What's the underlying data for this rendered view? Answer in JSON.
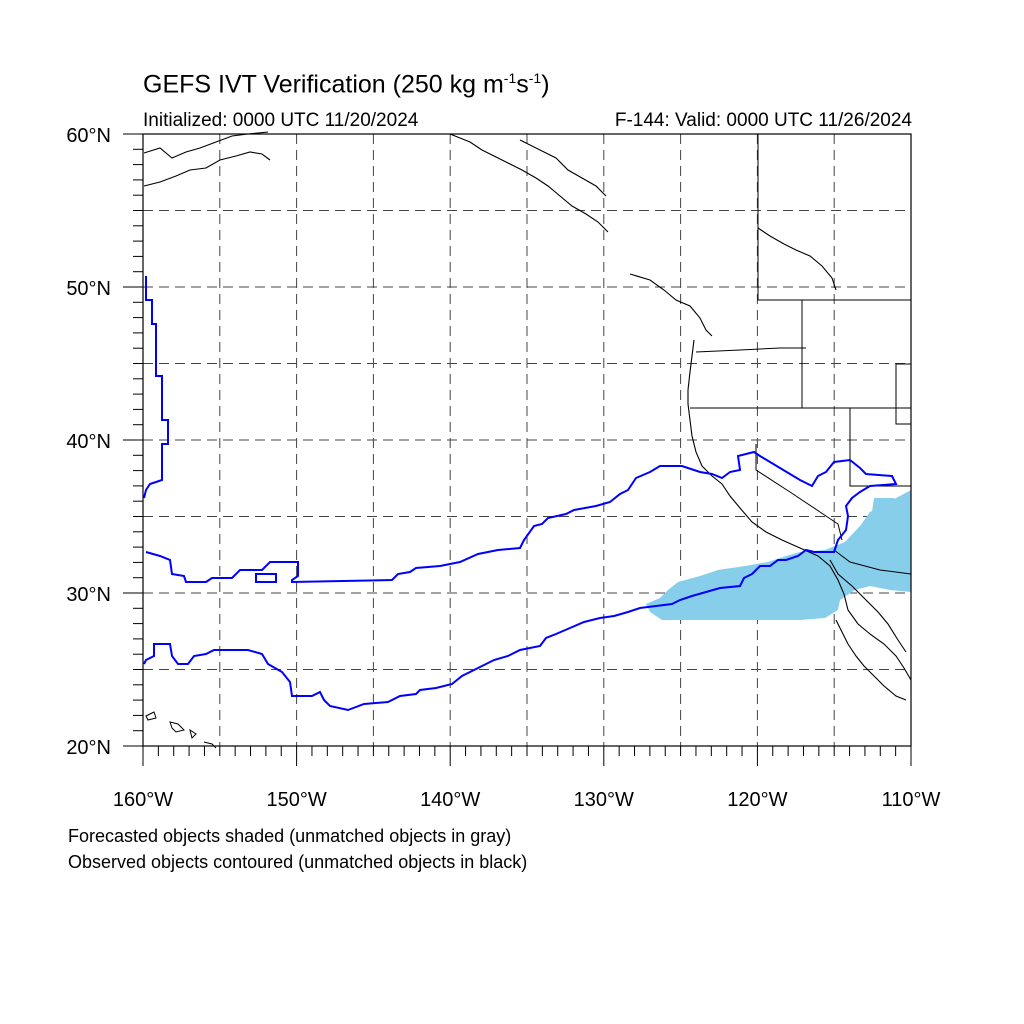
{
  "header": {
    "title_main": "GEFS IVT Verification (250 kg m",
    "title_sup1": "-1",
    "title_mid": "s",
    "title_sup2": "-1",
    "title_end": ")",
    "initialized": "Initialized: 0000 UTC 11/20/2024",
    "valid": "F-144: Valid: 0000 UTC 11/26/2024"
  },
  "map": {
    "lon_range": [
      -160,
      -110
    ],
    "lat_range": [
      20,
      60
    ],
    "lat_labels": [
      "60°N",
      "50°N",
      "40°N",
      "30°N",
      "20°N"
    ],
    "lon_labels": [
      "160°W",
      "150°W",
      "140°W",
      "130°W",
      "120°W",
      "110°W"
    ],
    "colors": {
      "forecast_fill": "#87ceeb",
      "observed_contour": "#0000ff",
      "coastline": "#000000",
      "grid": "#444444"
    }
  },
  "notes": {
    "forecast": "Forecasted objects shaded (unmatched objects in gray)",
    "observed": "Observed objects contoured (unmatched objects in black)"
  }
}
